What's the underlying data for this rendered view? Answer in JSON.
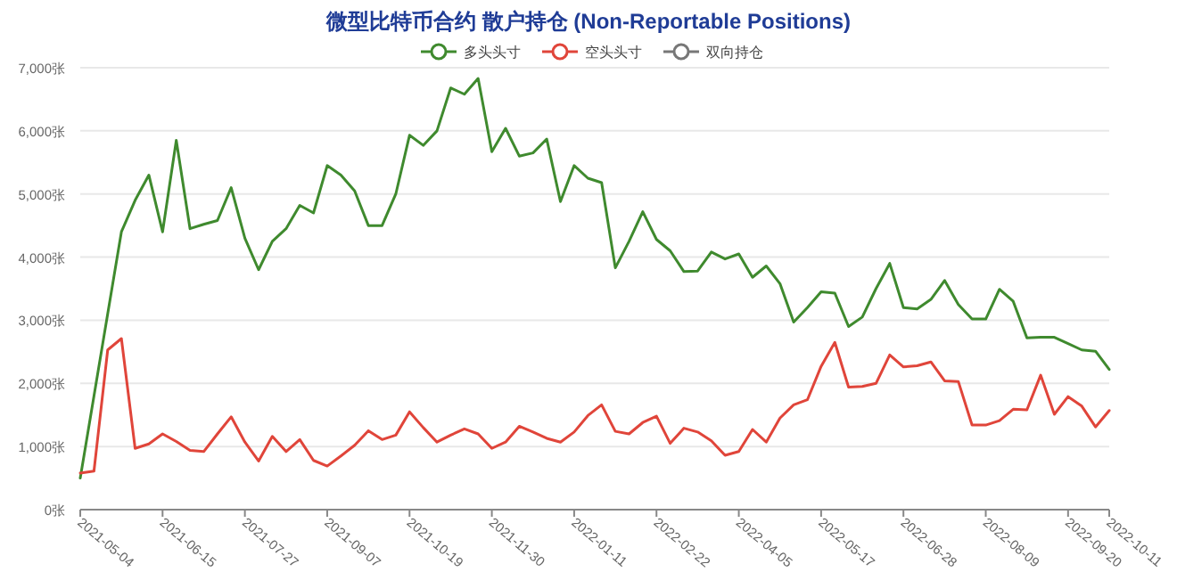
{
  "chart_data": {
    "type": "line",
    "title": "微型比特币合约 散户持仓 (Non-Reportable Positions)",
    "categories": [
      "2021-05-04",
      null,
      null,
      null,
      null,
      null,
      "2021-06-15",
      null,
      null,
      null,
      null,
      null,
      "2021-07-27",
      null,
      null,
      null,
      null,
      null,
      "2021-09-07",
      null,
      null,
      null,
      null,
      null,
      "2021-10-19",
      null,
      null,
      null,
      null,
      null,
      "2021-11-30",
      null,
      null,
      null,
      null,
      null,
      "2022-01-11",
      null,
      null,
      null,
      null,
      null,
      "2022-02-22",
      null,
      null,
      null,
      null,
      null,
      "2022-04-05",
      null,
      null,
      null,
      null,
      null,
      "2022-05-17",
      null,
      null,
      null,
      null,
      null,
      "2022-06-28",
      null,
      null,
      null,
      null,
      null,
      "2022-08-09",
      null,
      null,
      null,
      null,
      null,
      "2022-09-20",
      null,
      null,
      "2022-10-11"
    ],
    "series": [
      {
        "name": "多头头寸",
        "color": "#3f8a2e",
        "values": [
          500,
          1800,
          3100,
          4400,
          4900,
          5300,
          4400,
          5850,
          4450,
          4520,
          4580,
          5100,
          4300,
          3800,
          4250,
          4450,
          4820,
          4700,
          5450,
          5300,
          5050,
          4500,
          4500,
          5000,
          5930,
          5770,
          6000,
          6680,
          6580,
          6830,
          5670,
          6040,
          5600,
          5650,
          5870,
          4880,
          5450,
          5250,
          5180,
          3830,
          4250,
          4720,
          4280,
          4100,
          3770,
          3780,
          4080,
          3970,
          4050,
          3680,
          3860,
          3580,
          2970,
          3200,
          3450,
          3430,
          2900,
          3050,
          3500,
          3900,
          3200,
          3180,
          3330,
          3630,
          3250,
          3020,
          3020,
          3490,
          3300,
          2720,
          2730,
          2730,
          2630,
          2530,
          2510,
          2220
        ]
      },
      {
        "name": "空头头寸",
        "color": "#e0453a",
        "values": [
          580,
          610,
          2530,
          2710,
          970,
          1040,
          1200,
          1080,
          940,
          920,
          1200,
          1470,
          1070,
          770,
          1160,
          920,
          1110,
          780,
          690,
          850,
          1020,
          1250,
          1110,
          1180,
          1550,
          1300,
          1070,
          1180,
          1280,
          1200,
          970,
          1070,
          1320,
          1230,
          1130,
          1070,
          1230,
          1490,
          1660,
          1240,
          1200,
          1380,
          1480,
          1050,
          1290,
          1230,
          1090,
          860,
          920,
          1270,
          1070,
          1450,
          1660,
          1740,
          2270,
          2650,
          1940,
          1950,
          2000,
          2450,
          2260,
          2280,
          2340,
          2040,
          2030,
          1340,
          1340,
          1410,
          1590,
          1580,
          2130,
          1510,
          1790,
          1640,
          1310,
          1570
        ]
      },
      {
        "name": "双向持仓",
        "color": "#777777",
        "values": [
          null,
          null,
          null,
          null,
          null,
          null,
          null,
          null,
          null,
          null,
          null,
          null,
          null,
          null,
          null,
          null,
          null,
          null,
          null,
          null,
          null,
          null,
          null,
          null,
          null,
          null,
          null,
          null,
          null,
          null,
          null,
          null,
          null,
          null,
          null,
          null,
          null,
          null,
          null,
          null,
          null,
          null,
          null,
          null,
          null,
          null,
          null,
          null,
          null,
          null,
          null,
          null,
          null,
          null,
          null,
          null,
          null,
          null,
          null,
          null,
          null,
          null,
          null,
          null,
          null,
          null,
          null,
          null,
          null,
          null,
          null,
          null,
          null,
          null,
          null,
          null
        ]
      }
    ],
    "ylim": [
      0,
      7000
    ],
    "yticks": [
      {
        "value": 0,
        "label": "0张"
      },
      {
        "value": 1000,
        "label": "1,000张"
      },
      {
        "value": 2000,
        "label": "2,000张"
      },
      {
        "value": 3000,
        "label": "3,000张"
      },
      {
        "value": 4000,
        "label": "4,000张"
      },
      {
        "value": 5000,
        "label": "5,000张"
      },
      {
        "value": 6000,
        "label": "6,000张"
      },
      {
        "value": 7000,
        "label": "7,000张"
      }
    ],
    "grid": "y",
    "legend": "top"
  }
}
